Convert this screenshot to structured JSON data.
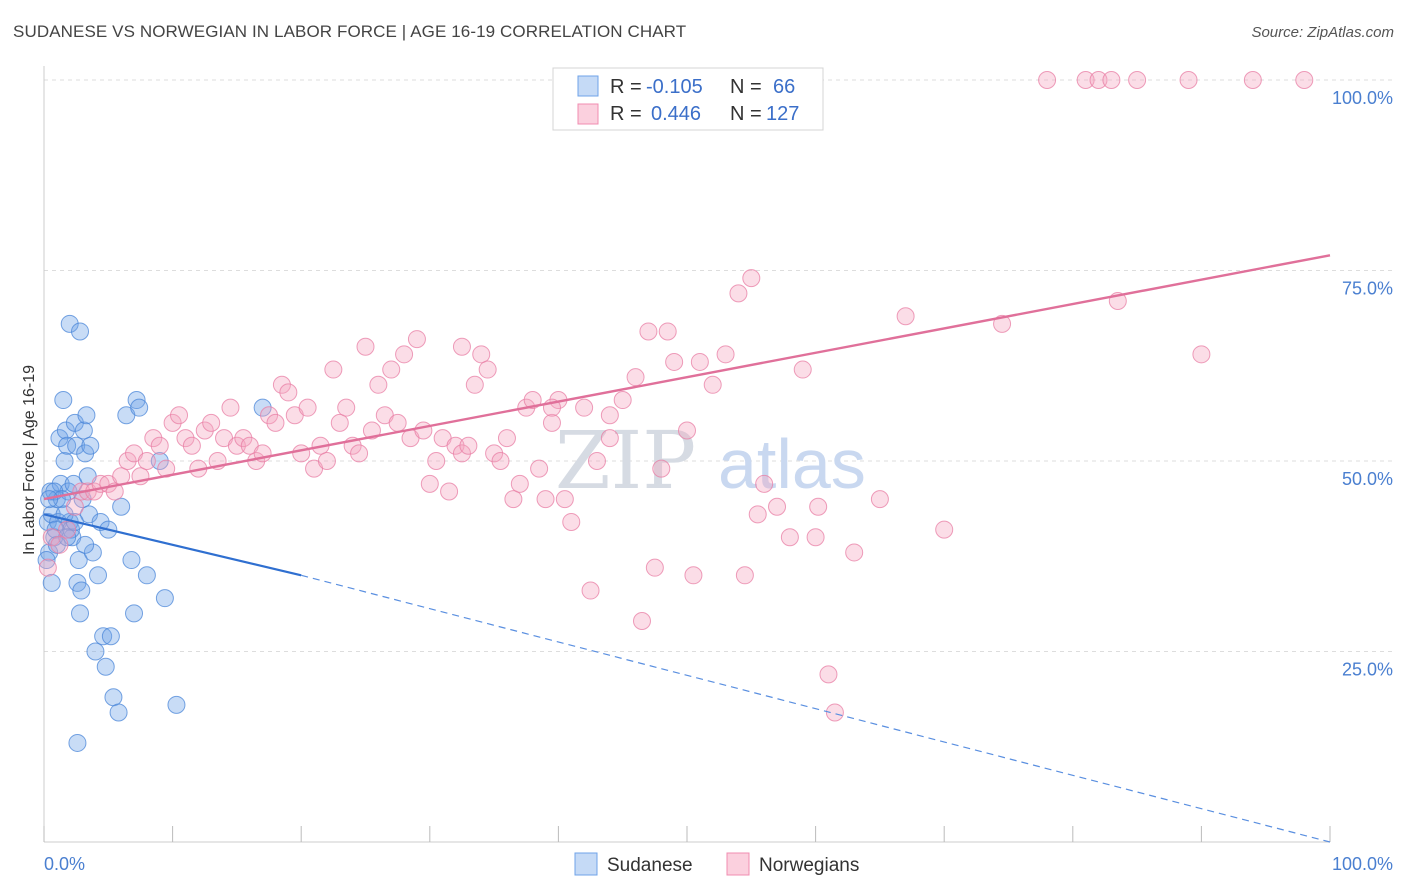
{
  "header": {
    "title": "SUDANESE VS NORWEGIAN IN LABOR FORCE | AGE 16-19 CORRELATION CHART",
    "source": "Source: ZipAtlas.com"
  },
  "watermark": {
    "zip": "ZIP",
    "atlas": "atlas"
  },
  "legend_box": {
    "rows": [
      {
        "r_label": "R =",
        "r_value": "-0.105",
        "n_label": "N =",
        "n_value": "66",
        "color": "#6fa3e8"
      },
      {
        "r_label": "R =",
        "r_value": "0.446",
        "n_label": "N =",
        "n_value": "127",
        "color": "#f08cb0"
      }
    ]
  },
  "chart_data": {
    "type": "scatter",
    "title": "SUDANESE VS NORWEGIAN IN LABOR FORCE | AGE 16-19 CORRELATION CHART",
    "ylabel": "In Labor Force | Age 16-19",
    "xlabel": "",
    "x_tick_labels": [
      "0.0%",
      "100.0%"
    ],
    "y_tick_labels": [
      "25.0%",
      "50.0%",
      "75.0%",
      "100.0%"
    ],
    "y_ticks": [
      25,
      50,
      75,
      100
    ],
    "xlim": [
      0,
      100
    ],
    "ylim": [
      0,
      100
    ],
    "grid": true,
    "legend_position": "bottom-center",
    "series": [
      {
        "name": "Sudanese",
        "color": "#6fa3e8",
        "stroke": "#4a86d8",
        "trend": {
          "x0": 0,
          "y0": 43,
          "x1": 20,
          "y1": 35,
          "dashed_to_x": 100,
          "dashed_to_y": 0
        },
        "points": [
          [
            0.3,
            42
          ],
          [
            0.5,
            46
          ],
          [
            0.6,
            43
          ],
          [
            0.8,
            40
          ],
          [
            1.0,
            45
          ],
          [
            1.1,
            42
          ],
          [
            1.2,
            53
          ],
          [
            1.3,
            47
          ],
          [
            1.5,
            58
          ],
          [
            1.6,
            50
          ],
          [
            1.7,
            54
          ],
          [
            1.8,
            52
          ],
          [
            1.9,
            46
          ],
          [
            2.0,
            42
          ],
          [
            2.2,
            40
          ],
          [
            2.3,
            47
          ],
          [
            2.4,
            55
          ],
          [
            2.5,
            52
          ],
          [
            2.6,
            34
          ],
          [
            2.7,
            37
          ],
          [
            2.8,
            30
          ],
          [
            2.9,
            33
          ],
          [
            3.0,
            45
          ],
          [
            3.1,
            54
          ],
          [
            3.2,
            51
          ],
          [
            3.3,
            56
          ],
          [
            3.4,
            48
          ],
          [
            3.5,
            43
          ],
          [
            3.6,
            52
          ],
          [
            3.8,
            38
          ],
          [
            4.0,
            25
          ],
          [
            4.2,
            35
          ],
          [
            4.4,
            42
          ],
          [
            4.6,
            27
          ],
          [
            4.8,
            23
          ],
          [
            5.0,
            41
          ],
          [
            5.2,
            27
          ],
          [
            5.4,
            19
          ],
          [
            2.0,
            68
          ],
          [
            2.8,
            67
          ],
          [
            0.4,
            38
          ],
          [
            0.8,
            46
          ],
          [
            1.0,
            39
          ],
          [
            1.4,
            45
          ],
          [
            2.1,
            41
          ],
          [
            2.6,
            13
          ],
          [
            5.8,
            17
          ],
          [
            6.0,
            44
          ],
          [
            6.4,
            56
          ],
          [
            6.8,
            37
          ],
          [
            7.0,
            30
          ],
          [
            7.2,
            58
          ],
          [
            7.4,
            57
          ],
          [
            8.0,
            35
          ],
          [
            9.0,
            50
          ],
          [
            9.4,
            32
          ],
          [
            10.3,
            18
          ],
          [
            17.0,
            57
          ],
          [
            0.2,
            37
          ],
          [
            0.6,
            34
          ],
          [
            1.6,
            43
          ],
          [
            3.2,
            39
          ],
          [
            2.4,
            42
          ],
          [
            0.9,
            41
          ],
          [
            1.8,
            40
          ],
          [
            0.4,
            45
          ]
        ]
      },
      {
        "name": "Norwegians",
        "color": "#f4a6c1",
        "stroke": "#e87ea4",
        "trend": {
          "x0": 0,
          "y0": 45,
          "x1": 100,
          "y1": 77
        },
        "points": [
          [
            0.3,
            36
          ],
          [
            0.6,
            40
          ],
          [
            1.2,
            39
          ],
          [
            1.8,
            41
          ],
          [
            2.4,
            44
          ],
          [
            2.9,
            46
          ],
          [
            3.4,
            46
          ],
          [
            3.9,
            46
          ],
          [
            4.4,
            47
          ],
          [
            5.0,
            47
          ],
          [
            5.5,
            46
          ],
          [
            6.0,
            48
          ],
          [
            6.5,
            50
          ],
          [
            7.0,
            51
          ],
          [
            7.5,
            48
          ],
          [
            8.0,
            50
          ],
          [
            8.5,
            53
          ],
          [
            9.0,
            52
          ],
          [
            9.5,
            49
          ],
          [
            10.0,
            55
          ],
          [
            10.5,
            56
          ],
          [
            11.0,
            53
          ],
          [
            11.5,
            52
          ],
          [
            12.0,
            49
          ],
          [
            12.5,
            54
          ],
          [
            13.0,
            55
          ],
          [
            13.5,
            50
          ],
          [
            14.0,
            53
          ],
          [
            14.5,
            57
          ],
          [
            15.0,
            52
          ],
          [
            15.5,
            53
          ],
          [
            16.0,
            52
          ],
          [
            16.5,
            50
          ],
          [
            17.0,
            51
          ],
          [
            17.5,
            56
          ],
          [
            18.0,
            55
          ],
          [
            18.5,
            60
          ],
          [
            19.0,
            59
          ],
          [
            19.5,
            56
          ],
          [
            20.0,
            51
          ],
          [
            20.5,
            57
          ],
          [
            21.0,
            49
          ],
          [
            21.5,
            52
          ],
          [
            22.0,
            50
          ],
          [
            22.5,
            62
          ],
          [
            23.0,
            55
          ],
          [
            23.5,
            57
          ],
          [
            24.0,
            52
          ],
          [
            24.5,
            51
          ],
          [
            25.0,
            65
          ],
          [
            25.5,
            54
          ],
          [
            26.0,
            60
          ],
          [
            26.5,
            56
          ],
          [
            27.0,
            62
          ],
          [
            27.5,
            55
          ],
          [
            28.0,
            64
          ],
          [
            28.5,
            53
          ],
          [
            29.0,
            66
          ],
          [
            29.5,
            54
          ],
          [
            30.0,
            47
          ],
          [
            30.5,
            50
          ],
          [
            31.0,
            53
          ],
          [
            31.5,
            46
          ],
          [
            32.0,
            52
          ],
          [
            32.5,
            51
          ],
          [
            33.0,
            52
          ],
          [
            33.5,
            60
          ],
          [
            34.0,
            64
          ],
          [
            34.5,
            62
          ],
          [
            35.0,
            51
          ],
          [
            35.5,
            50
          ],
          [
            36.0,
            53
          ],
          [
            36.5,
            45
          ],
          [
            37.0,
            47
          ],
          [
            37.5,
            57
          ],
          [
            38.0,
            58
          ],
          [
            38.5,
            49
          ],
          [
            39.0,
            45
          ],
          [
            39.5,
            55
          ],
          [
            40.0,
            58
          ],
          [
            40.5,
            45
          ],
          [
            41.0,
            42
          ],
          [
            42.0,
            57
          ],
          [
            42.5,
            33
          ],
          [
            43.0,
            50
          ],
          [
            44.0,
            53
          ],
          [
            45.0,
            58
          ],
          [
            46.0,
            61
          ],
          [
            46.5,
            29
          ],
          [
            47.0,
            67
          ],
          [
            47.5,
            36
          ],
          [
            48.0,
            49
          ],
          [
            48.5,
            67
          ],
          [
            49.0,
            63
          ],
          [
            50.0,
            54
          ],
          [
            50.5,
            35
          ],
          [
            51.0,
            63
          ],
          [
            52.0,
            60
          ],
          [
            53.0,
            64
          ],
          [
            54.0,
            72
          ],
          [
            54.5,
            35
          ],
          [
            55.0,
            74
          ],
          [
            55.5,
            43
          ],
          [
            56.0,
            47
          ],
          [
            57.0,
            44
          ],
          [
            58.0,
            40
          ],
          [
            59.0,
            62
          ],
          [
            60.0,
            40
          ],
          [
            61.0,
            22
          ],
          [
            61.5,
            17
          ],
          [
            63.0,
            38
          ],
          [
            65.0,
            45
          ],
          [
            67.0,
            69
          ],
          [
            70.0,
            41
          ],
          [
            78.0,
            100
          ],
          [
            81.0,
            100
          ],
          [
            82.0,
            100
          ],
          [
            83.0,
            100
          ],
          [
            85.0,
            100
          ],
          [
            89.0,
            100
          ],
          [
            94.0,
            100
          ],
          [
            98.0,
            100
          ],
          [
            74.5,
            68
          ],
          [
            83.5,
            71
          ],
          [
            90.0,
            64
          ],
          [
            44.0,
            56
          ],
          [
            39.5,
            57
          ],
          [
            32.5,
            65
          ],
          [
            60.2,
            44
          ]
        ]
      }
    ]
  },
  "bottom_legend": {
    "items": [
      {
        "label": "Sudanese",
        "color": "#6fa3e8"
      },
      {
        "label": "Norwegians",
        "color": "#f4a6c1"
      }
    ]
  }
}
